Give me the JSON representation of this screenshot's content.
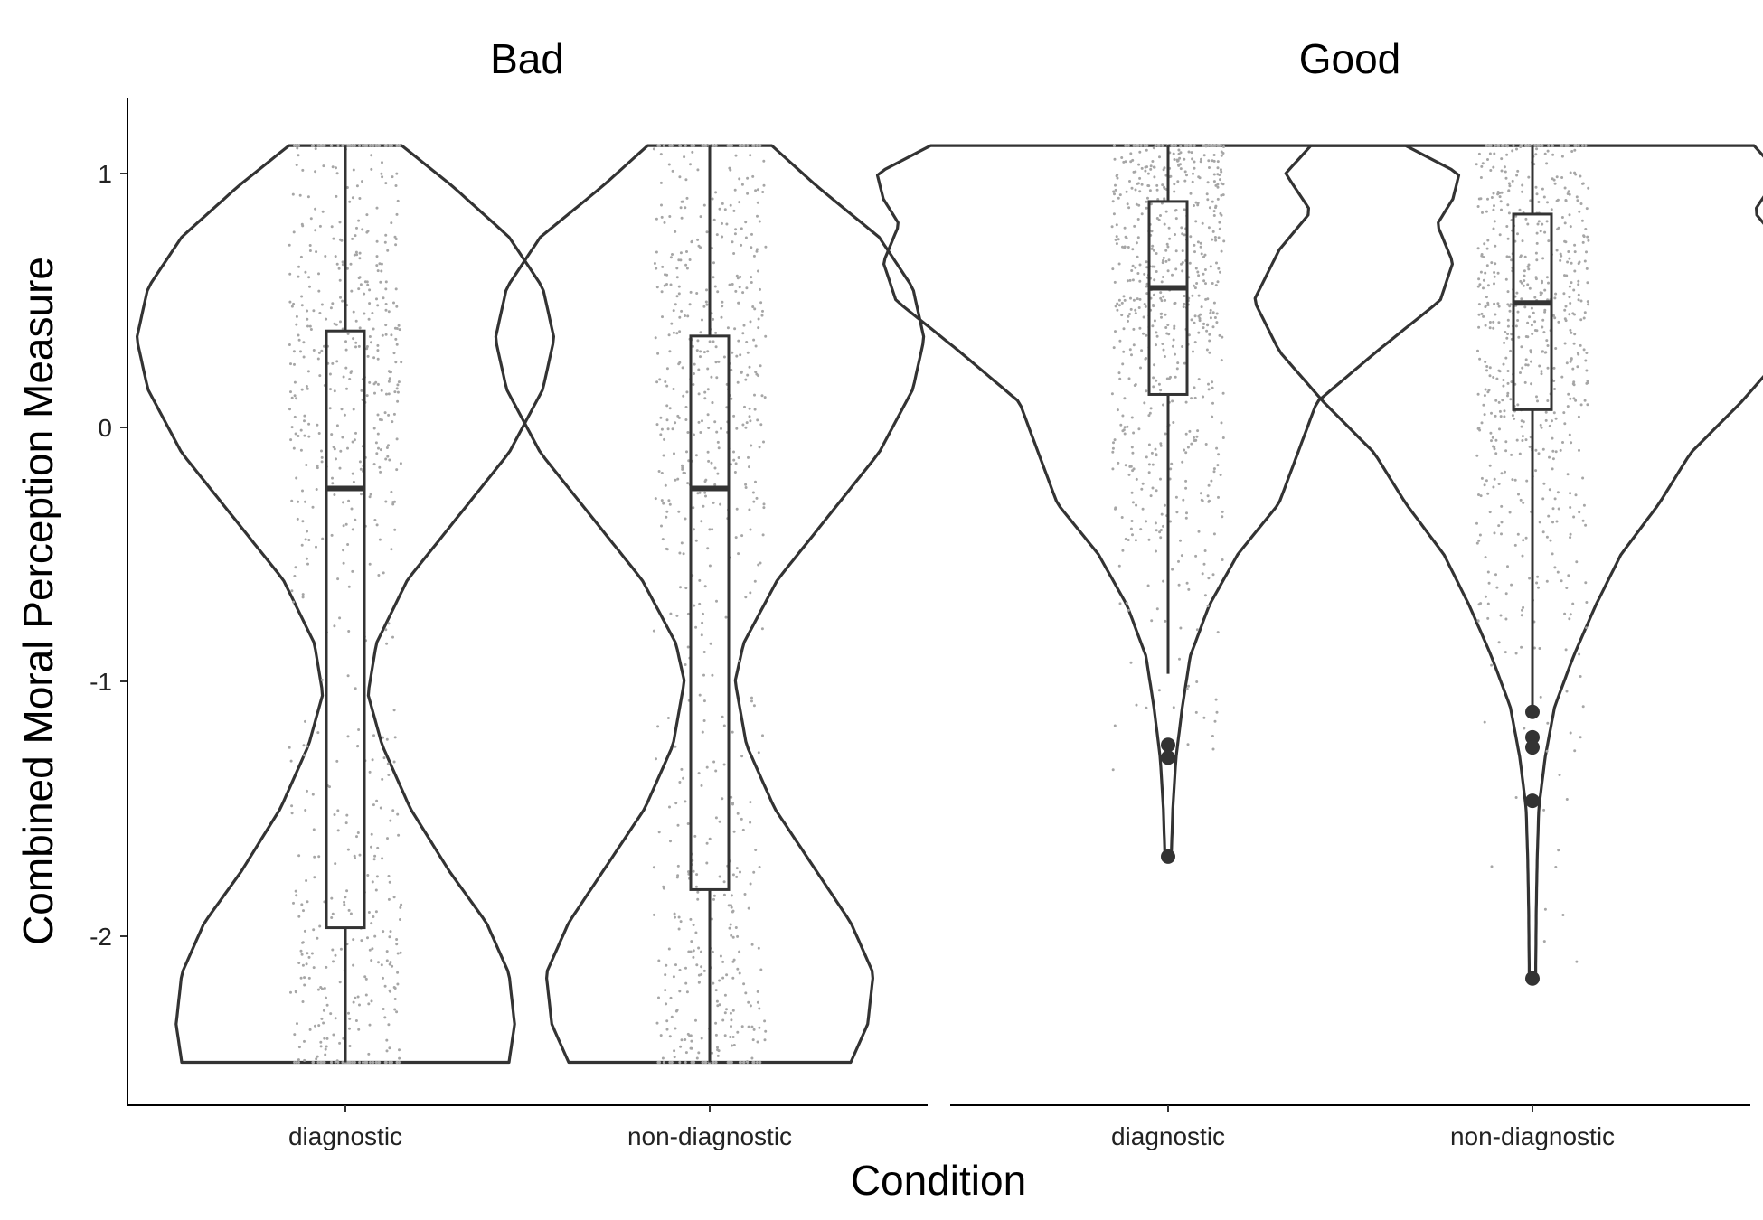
{
  "chart_data": {
    "type": "violin",
    "xlabel": "Condition",
    "ylabel": "Combined Moral Perception Measure",
    "ylim": [
      -2.6,
      1.25
    ],
    "y_ticks": [
      1,
      0,
      -1,
      -2
    ],
    "y_tick_labels": [
      "1",
      "0",
      "-1",
      "-2"
    ],
    "grid": false,
    "facets": [
      {
        "title": "Bad",
        "categories": [
          "diagnostic",
          "non-diagnostic"
        ],
        "groups": [
          {
            "category": "diagnostic",
            "min": -2.5,
            "q1": -1.97,
            "median": -0.24,
            "q3": 0.38,
            "max": 1.11,
            "outliers": [],
            "density": [
              [
                -2.5,
                0.58
              ],
              [
                -2.35,
                0.6
              ],
              [
                -2.15,
                0.58
              ],
              [
                -1.95,
                0.5
              ],
              [
                -1.75,
                0.37
              ],
              [
                -1.5,
                0.23
              ],
              [
                -1.25,
                0.13
              ],
              [
                -1.05,
                0.08
              ],
              [
                -0.85,
                0.11
              ],
              [
                -0.6,
                0.22
              ],
              [
                -0.35,
                0.4
              ],
              [
                -0.1,
                0.58
              ],
              [
                0.15,
                0.7
              ],
              [
                0.35,
                0.74
              ],
              [
                0.55,
                0.7
              ],
              [
                0.75,
                0.58
              ],
              [
                0.95,
                0.38
              ],
              [
                1.11,
                0.2
              ]
            ]
          },
          {
            "category": "non-diagnostic",
            "min": -2.5,
            "q1": -1.82,
            "median": -0.24,
            "q3": 0.36,
            "max": 1.11,
            "outliers": [],
            "density": [
              [
                -2.5,
                0.5
              ],
              [
                -2.35,
                0.56
              ],
              [
                -2.15,
                0.58
              ],
              [
                -1.95,
                0.5
              ],
              [
                -1.75,
                0.38
              ],
              [
                -1.5,
                0.23
              ],
              [
                -1.25,
                0.13
              ],
              [
                -1.0,
                0.09
              ],
              [
                -0.85,
                0.12
              ],
              [
                -0.6,
                0.24
              ],
              [
                -0.35,
                0.42
              ],
              [
                -0.1,
                0.6
              ],
              [
                0.15,
                0.72
              ],
              [
                0.35,
                0.76
              ],
              [
                0.55,
                0.72
              ],
              [
                0.75,
                0.6
              ],
              [
                0.95,
                0.38
              ],
              [
                1.11,
                0.22
              ]
            ]
          }
        ]
      },
      {
        "title": "Good",
        "categories": [
          "diagnostic",
          "non-diagnostic"
        ],
        "groups": [
          {
            "category": "diagnostic",
            "min": -0.97,
            "q1": 0.13,
            "median": 0.55,
            "q3": 0.89,
            "max": 1.11,
            "outliers": [
              -1.25,
              -1.3,
              -1.69
            ],
            "density": [
              [
                -1.69,
                0.01
              ],
              [
                -1.5,
                0.015
              ],
              [
                -1.3,
                0.025
              ],
              [
                -1.1,
                0.045
              ],
              [
                -0.9,
                0.07
              ],
              [
                -0.7,
                0.13
              ],
              [
                -0.5,
                0.22
              ],
              [
                -0.3,
                0.35
              ],
              [
                -0.1,
                0.41
              ],
              [
                0.1,
                0.47
              ],
              [
                0.3,
                0.66
              ],
              [
                0.5,
                0.86
              ],
              [
                0.65,
                0.9
              ],
              [
                0.8,
                0.85
              ],
              [
                0.9,
                0.9
              ],
              [
                1.0,
                0.92
              ],
              [
                1.11,
                0.75
              ]
            ]
          },
          {
            "category": "non-diagnostic",
            "min": -1.12,
            "q1": 0.07,
            "median": 0.49,
            "q3": 0.84,
            "max": 1.11,
            "outliers": [
              -1.12,
              -1.22,
              -1.26,
              -1.47,
              -2.17
            ],
            "density": [
              [
                -2.17,
                0.01
              ],
              [
                -1.9,
                0.012
              ],
              [
                -1.7,
                0.015
              ],
              [
                -1.5,
                0.02
              ],
              [
                -1.3,
                0.04
              ],
              [
                -1.1,
                0.07
              ],
              [
                -0.9,
                0.13
              ],
              [
                -0.7,
                0.2
              ],
              [
                -0.5,
                0.28
              ],
              [
                -0.3,
                0.4
              ],
              [
                -0.1,
                0.5
              ],
              [
                0.1,
                0.66
              ],
              [
                0.3,
                0.8
              ],
              [
                0.5,
                0.88
              ],
              [
                0.7,
                0.8
              ],
              [
                0.85,
                0.7
              ],
              [
                1.0,
                0.78
              ],
              [
                1.11,
                0.7
              ]
            ]
          }
        ]
      }
    ]
  },
  "colors": {
    "outline": "#333333",
    "points": "#a6a6a6",
    "axis": "#000000"
  }
}
